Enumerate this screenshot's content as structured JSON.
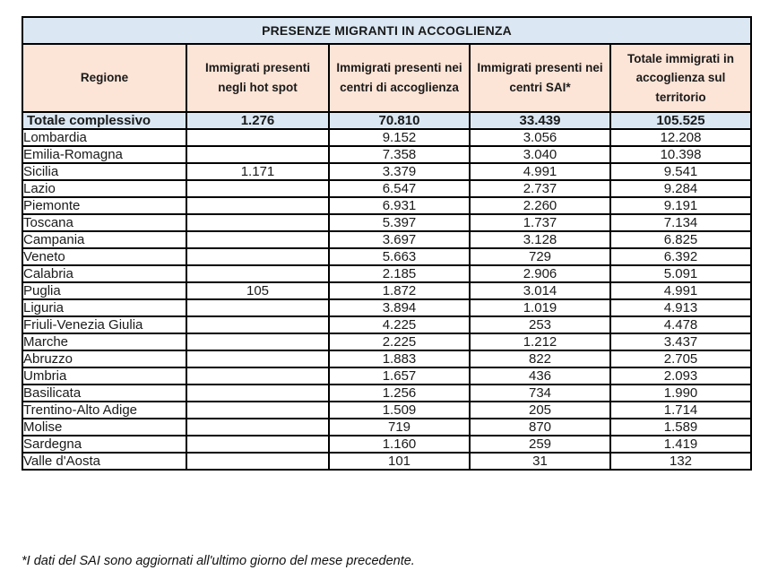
{
  "table": {
    "title": "PRESENZE MIGRANTI IN ACCOGLIENZA",
    "columns": [
      "Regione",
      "Immigrati presenti negli hot spot",
      "Immigrati presenti nei centri di accoglienza",
      "Immigrati presenti nei centri SAI*",
      "Totale immigrati in accoglienza sul territorio"
    ],
    "total_row": {
      "label": "Totale complessivo",
      "values": [
        "1.276",
        "70.810",
        "33.439",
        "105.525"
      ]
    },
    "rows": [
      {
        "region": "Lombardia",
        "values": [
          "",
          "9.152",
          "3.056",
          "12.208"
        ]
      },
      {
        "region": "Emilia-Romagna",
        "values": [
          "",
          "7.358",
          "3.040",
          "10.398"
        ]
      },
      {
        "region": "Sicilia",
        "values": [
          "1.171",
          "3.379",
          "4.991",
          "9.541"
        ]
      },
      {
        "region": "Lazio",
        "values": [
          "",
          "6.547",
          "2.737",
          "9.284"
        ]
      },
      {
        "region": "Piemonte",
        "values": [
          "",
          "6.931",
          "2.260",
          "9.191"
        ]
      },
      {
        "region": "Toscana",
        "values": [
          "",
          "5.397",
          "1.737",
          "7.134"
        ]
      },
      {
        "region": "Campania",
        "values": [
          "",
          "3.697",
          "3.128",
          "6.825"
        ]
      },
      {
        "region": "Veneto",
        "values": [
          "",
          "5.663",
          "729",
          "6.392"
        ]
      },
      {
        "region": "Calabria",
        "values": [
          "",
          "2.185",
          "2.906",
          "5.091"
        ]
      },
      {
        "region": "Puglia",
        "values": [
          "105",
          "1.872",
          "3.014",
          "4.991"
        ]
      },
      {
        "region": "Liguria",
        "values": [
          "",
          "3.894",
          "1.019",
          "4.913"
        ]
      },
      {
        "region": "Friuli-Venezia Giulia",
        "values": [
          "",
          "4.225",
          "253",
          "4.478"
        ]
      },
      {
        "region": "Marche",
        "values": [
          "",
          "2.225",
          "1.212",
          "3.437"
        ]
      },
      {
        "region": "Abruzzo",
        "values": [
          "",
          "1.883",
          "822",
          "2.705"
        ]
      },
      {
        "region": "Umbria",
        "values": [
          "",
          "1.657",
          "436",
          "2.093"
        ]
      },
      {
        "region": "Basilicata",
        "values": [
          "",
          "1.256",
          "734",
          "1.990"
        ]
      },
      {
        "region": "Trentino-Alto Adige",
        "values": [
          "",
          "1.509",
          "205",
          "1.714"
        ]
      },
      {
        "region": "Molise",
        "values": [
          "",
          "719",
          "870",
          "1.589"
        ]
      },
      {
        "region": "Sardegna",
        "values": [
          "",
          "1.160",
          "259",
          "1.419"
        ]
      },
      {
        "region": "Valle d'Aosta",
        "values": [
          "",
          "101",
          "31",
          "132"
        ]
      }
    ]
  },
  "footnote": "*I dati del SAI sono aggiornati all'ultimo giorno del mese precedente.",
  "colors": {
    "title_bg": "#dbe8f4",
    "header_bg": "#fce4d6",
    "total_bg": "#dbe8f4",
    "border": "#000000"
  }
}
